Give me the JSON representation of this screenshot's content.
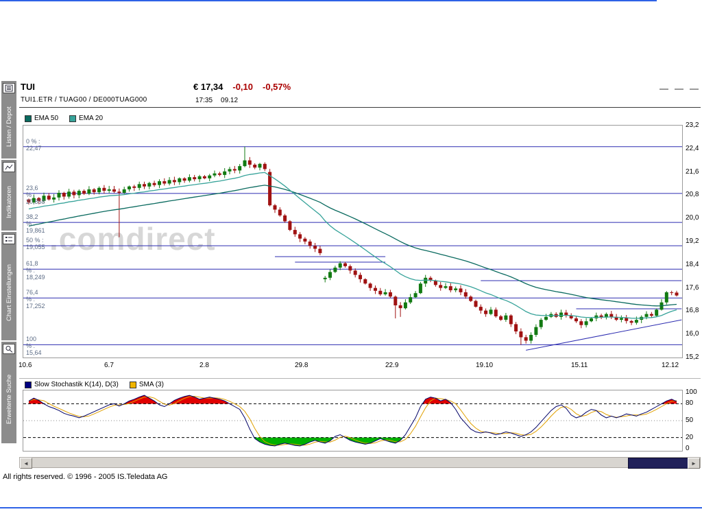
{
  "frame": {
    "border_color": "#2e62e6",
    "footer": "All rights reserved. © 1996 - 2005 IS.Teledata AG"
  },
  "sidebar": {
    "tabs": [
      {
        "label": "Listen / Depot",
        "icon": "listen-depot-icon"
      },
      {
        "label": "Indikatoren",
        "icon": "indikatoren-icon"
      },
      {
        "label": "Chart Einstellungen",
        "icon": "chart-einstellungen-icon"
      },
      {
        "label": "Erweiterte Suche",
        "icon": "erweiterte-suche-icon"
      }
    ]
  },
  "header": {
    "symbol": "TUI",
    "ids": "TUI1.ETR  /  TUAG00  /  DE000TUAG000",
    "price": "€ 17,34",
    "change_abs": "-0,10",
    "change_pct": "-0,57%",
    "change_color": "#aa0000",
    "time": "17:35",
    "date": "09.12"
  },
  "scrollbar": {
    "left_arrow": "◄",
    "right_arrow": "►"
  },
  "chart_data": [
    {
      "type": "candlestick",
      "legend": [
        {
          "label": "EMA 50",
          "color": "#0a6a5f"
        },
        {
          "label": "EMA 20",
          "color": "#37a39a"
        }
      ],
      "watermark": ".comdirect",
      "y_ticks": [
        "23,2",
        "22,4",
        "21,6",
        "20,8",
        "20,0",
        "19,2",
        "18,4",
        "17,6",
        "16,8",
        "16,0",
        "15,2"
      ],
      "y_range": [
        15.2,
        23.2
      ],
      "x_labels": [
        {
          "label": "10.6",
          "index": 0
        },
        {
          "label": "6.7",
          "index": 17
        },
        {
          "label": "2.8",
          "index": 36
        },
        {
          "label": "29.8",
          "index": 55
        },
        {
          "label": "22.9",
          "index": 73
        },
        {
          "label": "19.10",
          "index": 91
        },
        {
          "label": "15.11",
          "index": 110
        },
        {
          "label": "12.12",
          "index": 128
        }
      ],
      "close": [
        20.55,
        20.7,
        20.6,
        20.78,
        20.65,
        20.72,
        20.88,
        20.75,
        20.92,
        20.8,
        20.95,
        20.85,
        21.0,
        20.9,
        21.05,
        20.95,
        21.0,
        20.92,
        20.88,
        21.0,
        21.1,
        21.05,
        21.18,
        21.1,
        21.22,
        21.15,
        21.28,
        21.2,
        21.32,
        21.25,
        21.38,
        21.3,
        21.42,
        21.35,
        21.45,
        21.38,
        21.48,
        21.55,
        21.5,
        21.62,
        21.7,
        21.65,
        21.8,
        22.0,
        21.85,
        21.75,
        21.88,
        21.7,
        20.45,
        20.3,
        20.1,
        19.9,
        19.6,
        19.45,
        19.3,
        19.2,
        19.05,
        18.95,
        18.8,
        17.95,
        18.15,
        18.3,
        18.45,
        18.35,
        18.2,
        18.05,
        17.9,
        17.75,
        17.6,
        17.5,
        17.38,
        17.45,
        17.3,
        17.0,
        16.9,
        17.1,
        17.28,
        17.42,
        17.75,
        17.95,
        17.85,
        17.7,
        17.6,
        17.66,
        17.52,
        17.58,
        17.45,
        17.3,
        17.15,
        16.95,
        16.82,
        16.7,
        16.85,
        16.62,
        16.5,
        16.65,
        16.35,
        16.1,
        15.9,
        15.78,
        15.98,
        16.25,
        16.5,
        16.6,
        16.7,
        16.6,
        16.75,
        16.65,
        16.55,
        16.45,
        16.32,
        16.45,
        16.55,
        16.65,
        16.58,
        16.7,
        16.6,
        16.5,
        16.56,
        16.46,
        16.4,
        16.5,
        16.6,
        16.7,
        16.64,
        16.85,
        17.1,
        17.45,
        17.44,
        17.34
      ],
      "open_overrides": {
        "48": 21.6,
        "59": 17.9
      },
      "high_overrides": {
        "43": 22.47,
        "79": 18.05,
        "129": 17.5
      },
      "low_overrides": {
        "18": 19.35,
        "73": 16.55,
        "74": 16.6,
        "98": 15.64,
        "99": 15.68
      },
      "up_color": "#127a12",
      "down_color": "#a01212",
      "ema": [
        {
          "period": 50,
          "seed": 19.7,
          "color": "#0a6a5f"
        },
        {
          "period": 20,
          "seed": 20.3,
          "color": "#37a39a"
        }
      ],
      "fib_levels": [
        {
          "label": "0 % : 22,47",
          "value": 22.47
        },
        {
          "label": "23,6 % : 20,858",
          "value": 20.858
        },
        {
          "label": "38,2 % : 19,861",
          "value": 19.861
        },
        {
          "label": "50 % : 19,055",
          "value": 19.055
        },
        {
          "label": "61,8 % : 18,249",
          "value": 18.249
        },
        {
          "label": "76,4 % : 17,252",
          "value": 17.252
        },
        {
          "label": "100 % : 15,64",
          "value": 15.64
        }
      ],
      "draw_lines": [
        {
          "i1": 49,
          "v1": 18.68,
          "i2": 71,
          "v2": 18.68
        },
        {
          "i1": 53,
          "v1": 18.49,
          "i2": 71,
          "v2": 18.49
        },
        {
          "i1": 90,
          "v1": 17.85,
          "i2": 130,
          "v2": 17.85
        },
        {
          "i1": 109,
          "v1": 16.88,
          "i2": 130,
          "v2": 16.88
        },
        {
          "i1": 99,
          "v1": 15.45,
          "i2": 130,
          "v2": 16.5
        }
      ],
      "line_color": "#2b2bb0"
    },
    {
      "type": "line",
      "legend": [
        {
          "label": "Slow Stochastik K(14), D(3)",
          "color": "#000080"
        },
        {
          "label": "SMA (3)",
          "color": "#f0b400"
        }
      ],
      "y_ticks": [
        "100",
        "80",
        "50",
        "20",
        "0"
      ],
      "y_range": [
        0,
        100
      ],
      "values": [
        85,
        90,
        86,
        80,
        75,
        72,
        68,
        63,
        60,
        58,
        55,
        58,
        62,
        66,
        70,
        74,
        78,
        80,
        76,
        80,
        85,
        88,
        92,
        95,
        90,
        85,
        78,
        75,
        80,
        86,
        90,
        93,
        95,
        92,
        88,
        90,
        92,
        90,
        88,
        85,
        80,
        75,
        70,
        55,
        35,
        18,
        12,
        8,
        6,
        5,
        8,
        10,
        8,
        6,
        5,
        8,
        12,
        15,
        12,
        10,
        14,
        22,
        25,
        20,
        15,
        12,
        10,
        8,
        10,
        14,
        18,
        15,
        12,
        10,
        15,
        25,
        40,
        55,
        75,
        88,
        92,
        90,
        85,
        88,
        82,
        70,
        55,
        45,
        35,
        30,
        28,
        30,
        28,
        25,
        27,
        30,
        28,
        25,
        22,
        25,
        30,
        38,
        48,
        58,
        68,
        75,
        78,
        72,
        60,
        55,
        58,
        65,
        70,
        68,
        60,
        55,
        58,
        55,
        58,
        62,
        60,
        58,
        62,
        65,
        70,
        75,
        80,
        85,
        88,
        84
      ],
      "sma_period": 3,
      "upper": 80,
      "lower": 20,
      "mid": 50,
      "above_fill": "#e00000",
      "below_fill": "#00b000",
      "k_color": "#000066",
      "sma_color": "#e0a000"
    }
  ]
}
